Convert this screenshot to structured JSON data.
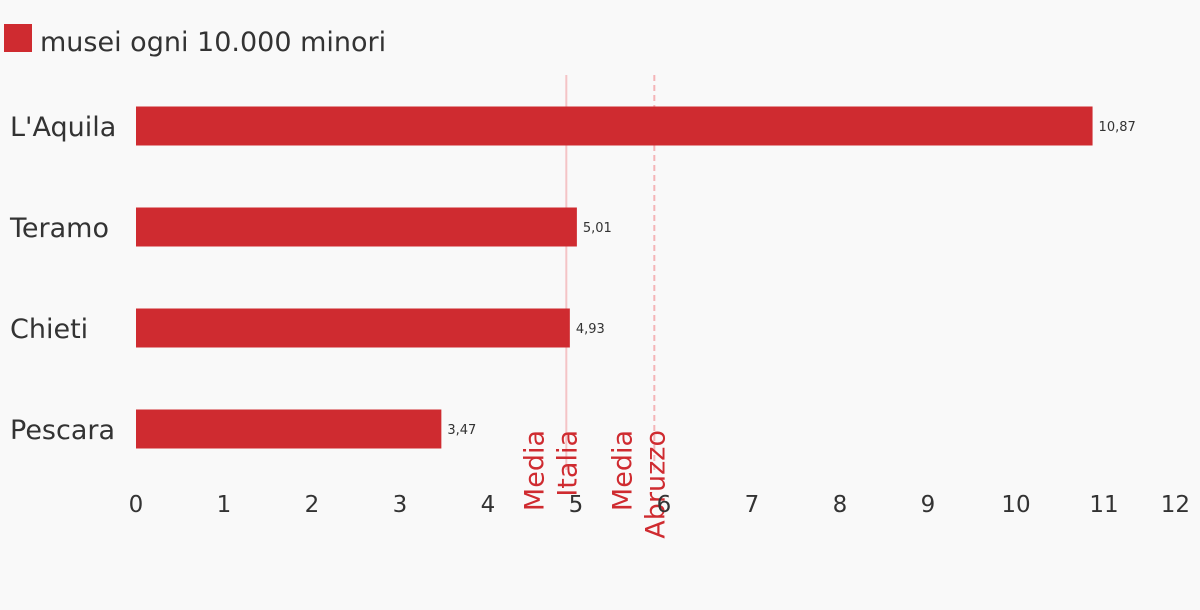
{
  "chart_data": {
    "type": "bar",
    "orientation": "horizontal",
    "categories": [
      "L'Aquila",
      "Teramo",
      "Chieti",
      "Pescara"
    ],
    "series": [
      {
        "name": "musei ogni 10.000 minori",
        "color": "#cf2b30",
        "values": [
          10.87,
          5.01,
          4.93,
          3.47
        ],
        "value_labels": [
          "10,87",
          "5,01",
          "4,93",
          "3,47"
        ]
      }
    ],
    "xlim": [
      0,
      12
    ],
    "xticks": [
      0,
      1,
      2,
      3,
      4,
      5,
      6,
      7,
      8,
      9,
      10,
      11,
      12
    ],
    "reference_lines": [
      {
        "label": [
          "Media",
          "Italia"
        ],
        "value": 4.89,
        "color": "#f4c4c6",
        "dashed": false
      },
      {
        "label": [
          "Media",
          "Abruzzo"
        ],
        "value": 5.89,
        "color": "#f4b4b7",
        "dashed": true
      }
    ],
    "reference_label_color": "#cf2b30",
    "legend": "top-left"
  }
}
